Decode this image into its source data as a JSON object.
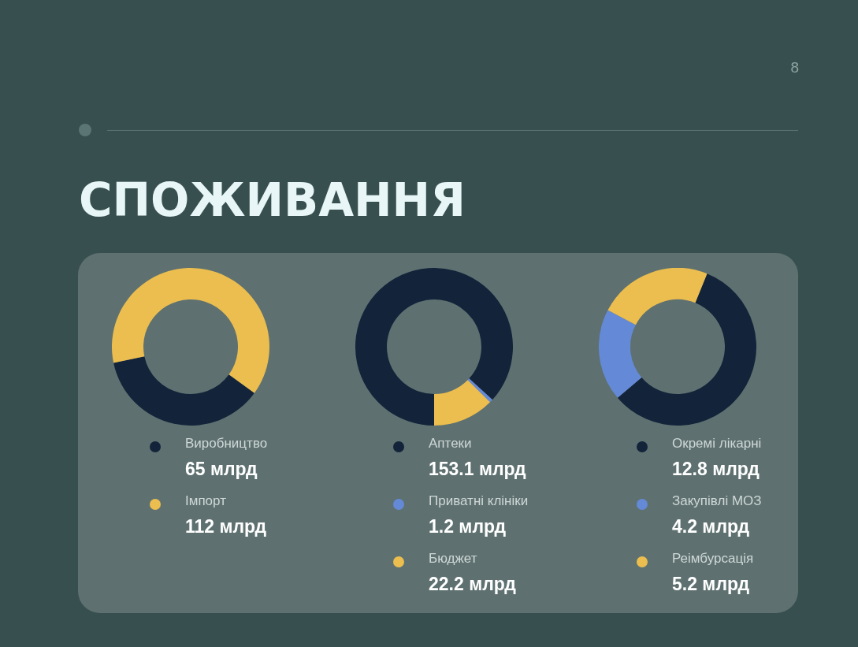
{
  "chart_data": [
    {
      "type": "donut",
      "title": "СПОЖИВАННЯ",
      "annotations": [
        "8"
      ],
      "categories": [
        "Виробництво",
        "Імпорт"
      ],
      "values": [
        65,
        112
      ],
      "value_labels": [
        "65 млрд",
        "112 млрд"
      ],
      "colors": [
        "#13233a",
        "#ecbd4f"
      ],
      "legend": "bottom"
    },
    {
      "type": "donut",
      "categories": [
        "Аптеки",
        "Приватні клініки",
        "Бюджет"
      ],
      "values": [
        153.1,
        1.2,
        22.2
      ],
      "value_labels": [
        "153.1 млрд",
        "1.2 млрд",
        "22.2 млрд"
      ],
      "colors": [
        "#13233a",
        "#6489d6",
        "#ecbd4f"
      ],
      "legend": "bottom"
    },
    {
      "type": "donut",
      "categories": [
        "Окремі лікарні",
        "Закупівлі МОЗ",
        "Реімбурсація"
      ],
      "values": [
        12.8,
        4.2,
        5.2
      ],
      "value_labels": [
        "12.8 млрд",
        "4.2 млрд",
        "5.2 млрд"
      ],
      "colors": [
        "#13233a",
        "#6489d6",
        "#ecbd4f"
      ],
      "legend": "bottom"
    }
  ]
}
